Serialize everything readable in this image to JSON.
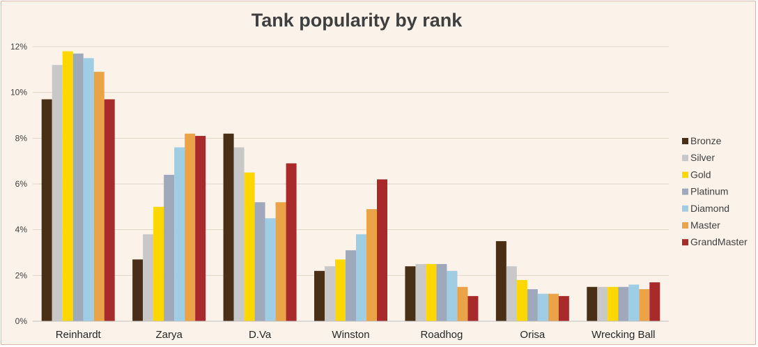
{
  "chart_data": {
    "type": "bar",
    "title": "Tank popularity by rank",
    "xlabel": "",
    "ylabel": "",
    "ylim": [
      0,
      12
    ],
    "y_ticks": [
      "0%",
      "2%",
      "4%",
      "6%",
      "8%",
      "10%",
      "12%"
    ],
    "y_tick_values": [
      0,
      2,
      4,
      6,
      8,
      10,
      12
    ],
    "grid": true,
    "legend_position": "right",
    "categories": [
      "Reinhardt",
      "Zarya",
      "D.Va",
      "Winston",
      "Roadhog",
      "Orisa",
      "Wrecking Ball"
    ],
    "series": [
      {
        "name": "Bronze",
        "color": "#4a2f17",
        "values": [
          9.7,
          2.7,
          8.2,
          2.2,
          2.4,
          3.5,
          1.5
        ]
      },
      {
        "name": "Silver",
        "color": "#c8c8c8",
        "values": [
          11.2,
          3.8,
          7.6,
          2.4,
          2.5,
          2.4,
          1.5
        ]
      },
      {
        "name": "Gold",
        "color": "#ffd700",
        "values": [
          11.8,
          5.0,
          6.5,
          2.7,
          2.5,
          1.8,
          1.5
        ]
      },
      {
        "name": "Platinum",
        "color": "#a0a8bc",
        "values": [
          11.7,
          6.4,
          5.2,
          3.1,
          2.5,
          1.4,
          1.5
        ]
      },
      {
        "name": "Diamond",
        "color": "#9fcde3",
        "values": [
          11.5,
          7.6,
          4.5,
          3.8,
          2.2,
          1.2,
          1.6
        ]
      },
      {
        "name": "Master",
        "color": "#eba347",
        "values": [
          10.9,
          8.2,
          5.2,
          4.9,
          1.5,
          1.2,
          1.4
        ]
      },
      {
        "name": "GrandMaster",
        "color": "#a82a2a",
        "values": [
          9.7,
          8.1,
          6.9,
          6.2,
          1.1,
          1.1,
          1.7
        ]
      }
    ]
  }
}
